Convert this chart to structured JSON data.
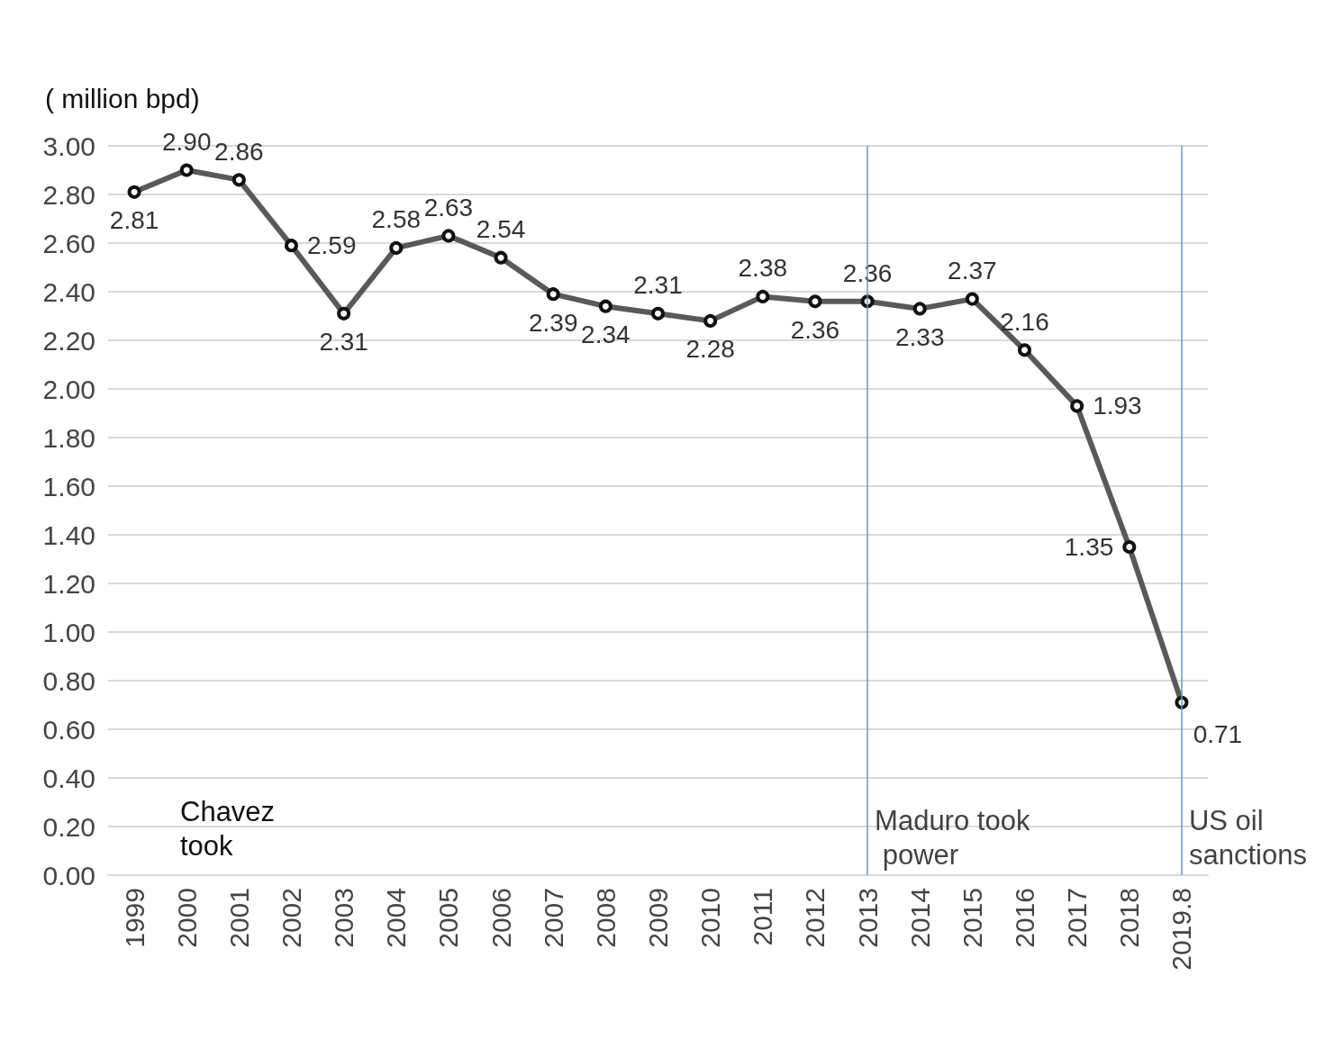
{
  "chart_data": {
    "type": "line",
    "ylabel": "( million bpd)",
    "categories": [
      "1999",
      "2000",
      "2001",
      "2002",
      "2003",
      "2004",
      "2005",
      "2006",
      "2007",
      "2008",
      "2009",
      "2010",
      "2011",
      "2012",
      "2013",
      "2014",
      "2015",
      "2016",
      "2017",
      "2018",
      "2019.8"
    ],
    "series": [
      {
        "color": "#595959",
        "values": [
          2.81,
          2.9,
          2.86,
          2.59,
          2.31,
          2.58,
          2.63,
          2.54,
          2.39,
          2.34,
          2.31,
          2.28,
          2.38,
          2.36,
          2.36,
          2.33,
          2.37,
          2.16,
          1.93,
          1.35,
          0.71
        ]
      }
    ],
    "ylim": [
      0,
      3
    ],
    "yticks": [
      {
        "value": 0,
        "label": "0.00"
      },
      {
        "value": 0.2,
        "label": "0.20"
      },
      {
        "value": 0.4,
        "label": "0.40"
      },
      {
        "value": 0.6,
        "label": "0.60"
      },
      {
        "value": 0.8,
        "label": "0.80"
      },
      {
        "value": 1,
        "label": "1.00"
      },
      {
        "value": 1.2,
        "label": "1.20"
      },
      {
        "value": 1.4,
        "label": "1.40"
      },
      {
        "value": 1.6,
        "label": "1.60"
      },
      {
        "value": 1.8,
        "label": "1.80"
      },
      {
        "value": 2,
        "label": "2.00"
      },
      {
        "value": 2.2,
        "label": "2.20"
      },
      {
        "value": 2.4,
        "label": "2.40"
      },
      {
        "value": 2.6,
        "label": "2.60"
      },
      {
        "value": 2.8,
        "label": "2.80"
      },
      {
        "value": 3,
        "label": "3.00"
      }
    ],
    "value_labels": [
      "2.81",
      "2.90",
      "2.86",
      "2.59",
      "2.31",
      "2.58",
      "2.63",
      "2.54",
      "2.39",
      "2.34",
      "2.31",
      "2.28",
      "2.38",
      "2.36",
      "2.36",
      "2.33",
      "2.37",
      "2.16",
      "1.93",
      "1.35",
      "0.71"
    ],
    "grid": "y",
    "marker": "circle",
    "line_style": "solid",
    "ref_lines": [
      {
        "axis": "x",
        "value": "2013",
        "label": "Maduro took power",
        "color": "#5b9bd5"
      },
      {
        "axis": "x",
        "value": "2019.8",
        "label": "US oil sanctions",
        "color": "#5b9bd5"
      }
    ],
    "annotations": [
      "Chavez took"
    ]
  }
}
